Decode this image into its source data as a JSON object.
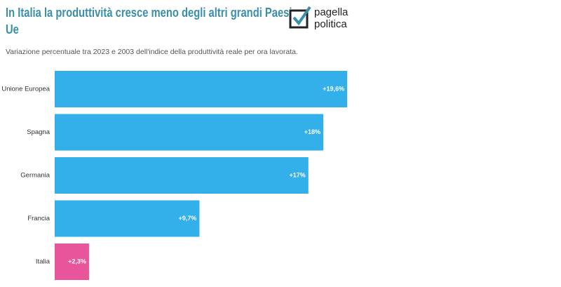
{
  "chart_data": {
    "type": "bar",
    "orientation": "horizontal",
    "title": "In Italia la produttività cresce meno degli altri grandi Paesi Ue",
    "subtitle": "Variazione percentuale tra 2023 e 2003 dell'indice della produttività reale per ora lavorata.",
    "logo": [
      "pagella",
      "politica"
    ],
    "categories": [
      "Unione Europea",
      "Spagna",
      "Germania",
      "Francia",
      "Italia"
    ],
    "values": [
      19.6,
      18,
      17,
      9.7,
      2.3
    ],
    "value_labels": [
      "+19,6%",
      "+18%",
      "+17%",
      "+9,7%",
      "+2,3%"
    ],
    "colors": [
      "#33b0ea",
      "#33b0ea",
      "#33b0ea",
      "#33b0ea",
      "#e8559a"
    ]
  }
}
